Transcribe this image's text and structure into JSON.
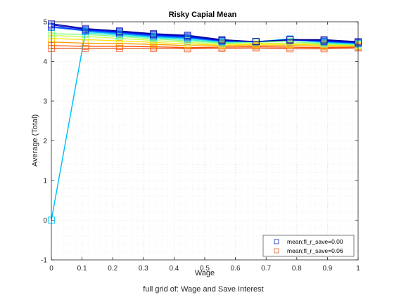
{
  "chart_data": {
    "type": "line",
    "title": "Risky Capial Mean",
    "xlabel": "Wage",
    "xlabel2": "full grid of: Wage and Save Interest",
    "ylabel": "Average (Total)",
    "xlim": [
      0,
      1
    ],
    "ylim": [
      -1,
      5
    ],
    "xticks": [
      "0",
      "0.1",
      "0.2",
      "0.3",
      "0.4",
      "0.5",
      "0.6",
      "0.7",
      "0.8",
      "0.9",
      "1"
    ],
    "yticks": [
      "-1",
      "0",
      "1",
      "2",
      "3",
      "4",
      "5"
    ],
    "grid": true,
    "legend_position": "bottom-right",
    "x": [
      0,
      0.111,
      0.222,
      0.333,
      0.444,
      0.556,
      0.667,
      0.778,
      0.889,
      1.0
    ],
    "series": [
      {
        "name": "mean;fl_r_save=0.00",
        "color": "#00008f",
        "values": [
          4.95,
          4.83,
          4.77,
          4.7,
          4.66,
          4.55,
          4.5,
          4.55,
          4.55,
          4.5
        ]
      },
      {
        "color": "#0000dc",
        "values": [
          4.92,
          4.81,
          4.75,
          4.68,
          4.64,
          4.53,
          4.5,
          4.54,
          4.53,
          4.48
        ]
      },
      {
        "color": "#0030ff",
        "values": [
          4.88,
          4.79,
          4.73,
          4.66,
          4.62,
          4.52,
          4.5,
          4.54,
          4.51,
          4.47
        ]
      },
      {
        "color": "#0078ff",
        "values": [
          4.86,
          4.77,
          4.71,
          4.64,
          4.6,
          4.51,
          4.5,
          4.55,
          4.5,
          4.46
        ]
      },
      {
        "color": "#00bcff",
        "values": [
          0.0,
          4.75,
          4.69,
          4.62,
          4.58,
          4.5,
          4.5,
          4.57,
          4.49,
          4.45
        ]
      },
      {
        "color": "#2ef0d0",
        "values": [
          0.0,
          4.72,
          4.66,
          4.6,
          4.55,
          4.48,
          4.5,
          4.55,
          4.47,
          4.44
        ]
      },
      {
        "color": "#7cff82",
        "values": [
          4.7,
          4.68,
          4.63,
          4.57,
          4.52,
          4.46,
          4.49,
          4.5,
          4.45,
          4.42
        ]
      },
      {
        "color": "#c4ff3a",
        "values": [
          4.65,
          4.63,
          4.58,
          4.53,
          4.48,
          4.44,
          4.46,
          4.46,
          4.43,
          4.41
        ]
      },
      {
        "color": "#ffe000",
        "values": [
          4.58,
          4.55,
          4.52,
          4.48,
          4.44,
          4.41,
          4.43,
          4.43,
          4.41,
          4.4
        ]
      },
      {
        "color": "#ff9a00",
        "values": [
          4.49,
          4.46,
          4.45,
          4.43,
          4.4,
          4.39,
          4.4,
          4.4,
          4.38,
          4.38
        ]
      },
      {
        "color": "#ff4d00",
        "values": [
          4.4,
          4.38,
          4.38,
          4.37,
          4.35,
          4.36,
          4.37,
          4.36,
          4.35,
          4.36
        ]
      },
      {
        "name": "mean;fl_r_save=0.06",
        "color": "#e0501c",
        "values": [
          4.33,
          4.33,
          4.33,
          4.33,
          4.32,
          4.33,
          4.34,
          4.32,
          4.32,
          4.34
        ]
      }
    ],
    "legend_entries": [
      {
        "label": "mean;fl_r_save=0.00",
        "color": "#1f3cb5"
      },
      {
        "label": "mean;fl_r_save=0.06",
        "color": "#e07040"
      }
    ]
  }
}
